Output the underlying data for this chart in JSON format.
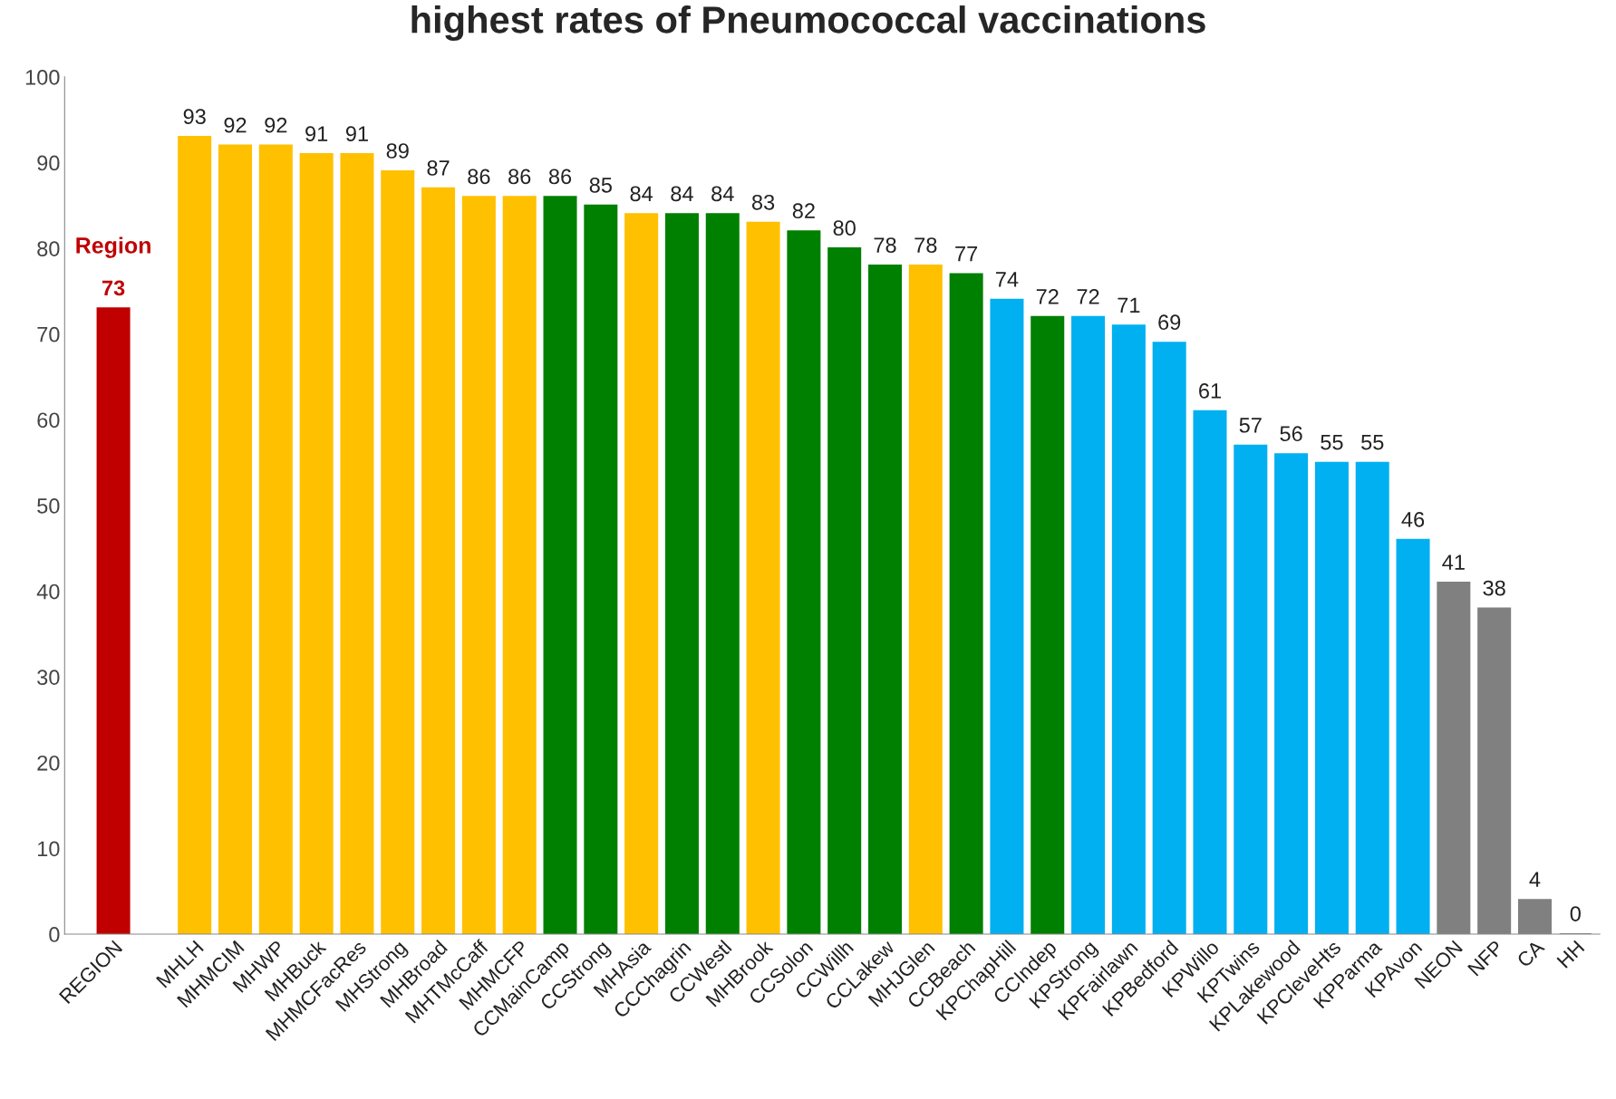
{
  "chart_data": {
    "type": "bar",
    "title": "highest rates of Pneumococcal vaccinations",
    "categories": [
      "REGION",
      null,
      "MHLH",
      "MHMCIM",
      "MHWP",
      "MHBuck",
      "MHMCFacRes",
      "MHStrong",
      "MHBroad",
      "MHTMcCaff",
      "MHMCFP",
      "CCMainCamp",
      "CCStrong",
      "MHAsia",
      "CCChagrin",
      "CCWestl",
      "MHBrook",
      "CCSolon",
      "CCWillh",
      "CCLakew",
      "MHJGlen",
      "CCBeach",
      "KPChapHill",
      "CCIndep",
      "KPStrong",
      "KPFairlawn",
      "KPBedford",
      "KPWillo",
      "KPTwins",
      "KPLakewood",
      "KPCleveHts",
      "KPParma",
      "KPAvon",
      "NEON",
      "NFP",
      "CA",
      "HH"
    ],
    "values": [
      73,
      null,
      93,
      92,
      92,
      91,
      91,
      89,
      87,
      86,
      86,
      86,
      85,
      84,
      84,
      84,
      83,
      82,
      80,
      78,
      78,
      77,
      74,
      72,
      72,
      71,
      69,
      61,
      57,
      56,
      55,
      55,
      46,
      41,
      38,
      4,
      0
    ],
    "colors": [
      "#c00000",
      "#ffffff",
      "#ffc000",
      "#ffc000",
      "#ffc000",
      "#ffc000",
      "#ffc000",
      "#ffc000",
      "#ffc000",
      "#ffc000",
      "#ffc000",
      "#008000",
      "#008000",
      "#ffc000",
      "#008000",
      "#008000",
      "#ffc000",
      "#008000",
      "#008000",
      "#008000",
      "#ffc000",
      "#008000",
      "#00b0f0",
      "#008000",
      "#00b0f0",
      "#00b0f0",
      "#00b0f0",
      "#00b0f0",
      "#00b0f0",
      "#00b0f0",
      "#00b0f0",
      "#00b0f0",
      "#00b0f0",
      "#808080",
      "#808080",
      "#808080",
      "#808080"
    ],
    "ylim": [
      0,
      100
    ],
    "yticks": [
      0,
      10,
      20,
      30,
      40,
      50,
      60,
      70,
      80,
      90,
      100
    ],
    "grid": false,
    "data_labels": true,
    "annotations": [
      {
        "text": "Region",
        "x": "REGION",
        "y": 73
      }
    ]
  }
}
